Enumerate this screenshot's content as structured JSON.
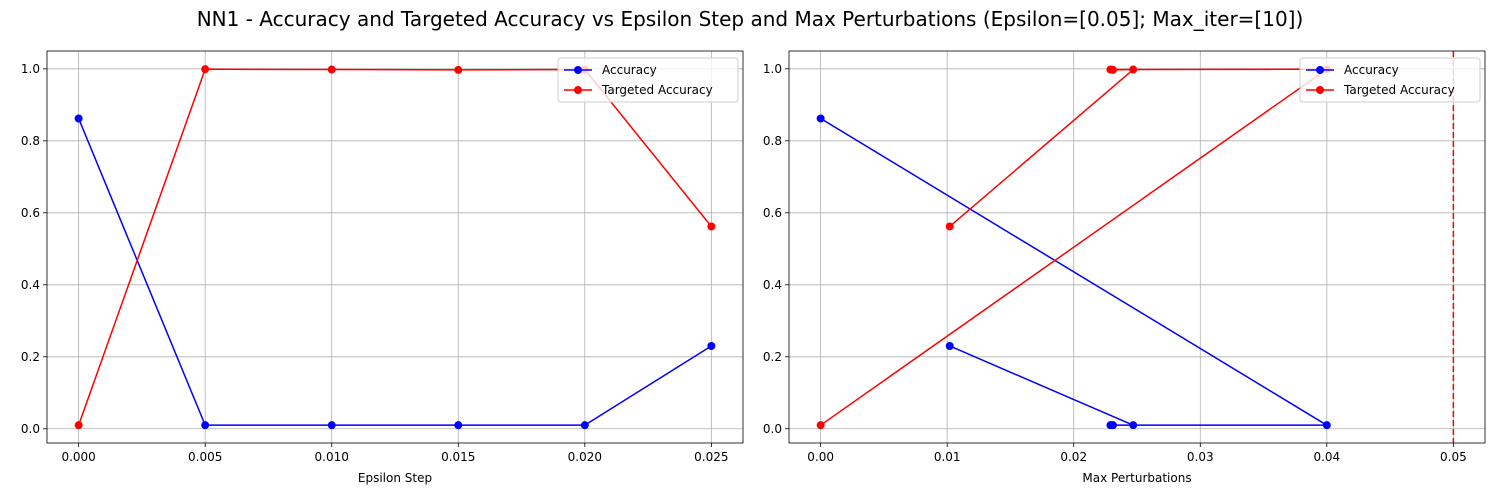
{
  "figure": {
    "title": "NN1 - Accuracy and Targeted Accuracy vs Epsilon Step and Max Perturbations (Epsilon=[0.05]; Max_iter=[10])"
  },
  "chart_data": [
    {
      "type": "line",
      "title": "",
      "xlabel": "Epsilon Step",
      "ylabel": "",
      "xlim": [
        -0.00125,
        0.02625
      ],
      "ylim": [
        -0.0395,
        1.0495
      ],
      "xticks": [
        0.0,
        0.005,
        0.01,
        0.015,
        0.02,
        0.025
      ],
      "xtick_labels": [
        "0.000",
        "0.005",
        "0.010",
        "0.015",
        "0.020",
        "0.025"
      ],
      "yticks": [
        0.0,
        0.2,
        0.4,
        0.6,
        0.8,
        1.0
      ],
      "ytick_labels": [
        "0.0",
        "0.2",
        "0.4",
        "0.6",
        "0.8",
        "1.0"
      ],
      "grid": true,
      "legend_position": "top-right",
      "series": [
        {
          "name": "Accuracy",
          "color": "#0000ff",
          "points": [
            [
              0.0,
              0.862
            ],
            [
              0.005,
              0.01
            ],
            [
              0.01,
              0.01
            ],
            [
              0.015,
              0.01
            ],
            [
              0.02,
              0.01
            ],
            [
              0.025,
              0.23
            ]
          ]
        },
        {
          "name": "Targeted Accuracy",
          "color": "#ff0000",
          "points": [
            [
              0.0,
              0.01
            ],
            [
              0.005,
              0.999
            ],
            [
              0.01,
              0.998
            ],
            [
              0.015,
              0.997
            ],
            [
              0.02,
              0.998
            ],
            [
              0.025,
              0.562
            ]
          ]
        }
      ],
      "vlines": []
    },
    {
      "type": "line",
      "title": "",
      "xlabel": "Max Perturbations",
      "ylabel": "",
      "xlim": [
        -0.0025,
        0.0525
      ],
      "ylim": [
        -0.0395,
        1.0495
      ],
      "xticks": [
        0.0,
        0.01,
        0.02,
        0.03,
        0.04,
        0.05
      ],
      "xtick_labels": [
        "0.00",
        "0.01",
        "0.02",
        "0.03",
        "0.04",
        "0.05"
      ],
      "yticks": [
        0.0,
        0.2,
        0.4,
        0.6,
        0.8,
        1.0
      ],
      "ytick_labels": [
        "0.0",
        "0.2",
        "0.4",
        "0.6",
        "0.8",
        "1.0"
      ],
      "grid": true,
      "legend_position": "top-right",
      "series": [
        {
          "name": "Accuracy",
          "color": "#0000ff",
          "points": [
            [
              0.0,
              0.862
            ],
            [
              0.04,
              0.01
            ],
            [
              0.0229,
              0.01
            ],
            [
              0.0231,
              0.01
            ],
            [
              0.0247,
              0.01
            ],
            [
              0.0102,
              0.23
            ]
          ]
        },
        {
          "name": "Targeted Accuracy",
          "color": "#ff0000",
          "points": [
            [
              0.0,
              0.01
            ],
            [
              0.04,
              0.999
            ],
            [
              0.0229,
              0.998
            ],
            [
              0.0231,
              0.997
            ],
            [
              0.0247,
              0.998
            ],
            [
              0.0102,
              0.562
            ]
          ]
        }
      ],
      "vlines": [
        {
          "x": 0.05,
          "color": "#ff0000",
          "style": "dashed"
        }
      ]
    }
  ]
}
